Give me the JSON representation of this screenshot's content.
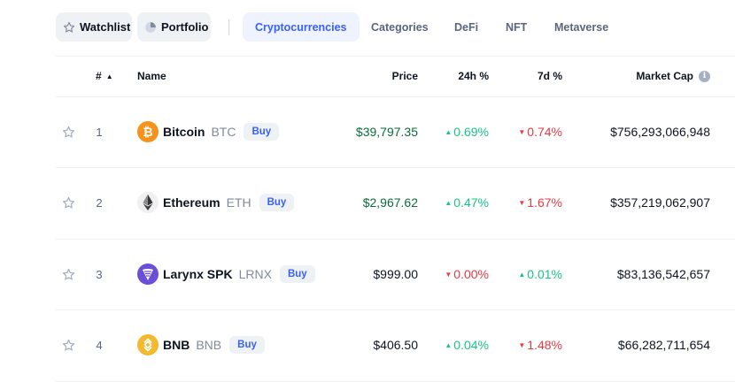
{
  "nav": {
    "watchlist_label": "Watchlist",
    "portfolio_label": "Portfolio",
    "tabs": [
      {
        "label": "Cryptocurrencies",
        "active": true
      },
      {
        "label": "Categories",
        "active": false
      },
      {
        "label": "DeFi",
        "active": false
      },
      {
        "label": "NFT",
        "active": false
      },
      {
        "label": "Metaverse",
        "active": false
      }
    ]
  },
  "table": {
    "headers": {
      "rank": "#",
      "name": "Name",
      "price": "Price",
      "change_24h": "24h %",
      "change_7d": "7d %",
      "market_cap": "Market Cap"
    },
    "rows": [
      {
        "rank": "1",
        "name": "Bitcoin",
        "symbol": "BTC",
        "buy": "Buy",
        "price": "$39,797.35",
        "price_color": "#0a6b3a",
        "change_24h": "0.69%",
        "dir_24h": "up",
        "change_7d": "0.74%",
        "dir_7d": "down",
        "market_cap": "$756,293,066,948",
        "icon": "bitcoin-icon"
      },
      {
        "rank": "2",
        "name": "Ethereum",
        "symbol": "ETH",
        "buy": "Buy",
        "price": "$2,967.62",
        "price_color": "#0a6b3a",
        "change_24h": "0.47%",
        "dir_24h": "up",
        "change_7d": "1.67%",
        "dir_7d": "down",
        "market_cap": "$357,219,062,907",
        "icon": "ethereum-icon"
      },
      {
        "rank": "3",
        "name": "Larynx SPK",
        "symbol": "LRNX",
        "buy": "Buy",
        "price": "$999.00",
        "price_color": "#0d1421",
        "change_24h": "0.00%",
        "dir_24h": "down",
        "change_7d": "0.01%",
        "dir_7d": "up",
        "market_cap": "$83,136,542,657",
        "icon": "larynx-icon"
      },
      {
        "rank": "4",
        "name": "BNB",
        "symbol": "BNB",
        "buy": "Buy",
        "price": "$406.50",
        "price_color": "#0d1421",
        "change_24h": "0.04%",
        "dir_24h": "up",
        "change_7d": "1.48%",
        "dir_7d": "down",
        "market_cap": "$66,282,711,654",
        "icon": "bnb-icon"
      }
    ]
  },
  "colors": {
    "up": "#16c784",
    "down": "#ea3943",
    "accent": "#3861fb"
  }
}
